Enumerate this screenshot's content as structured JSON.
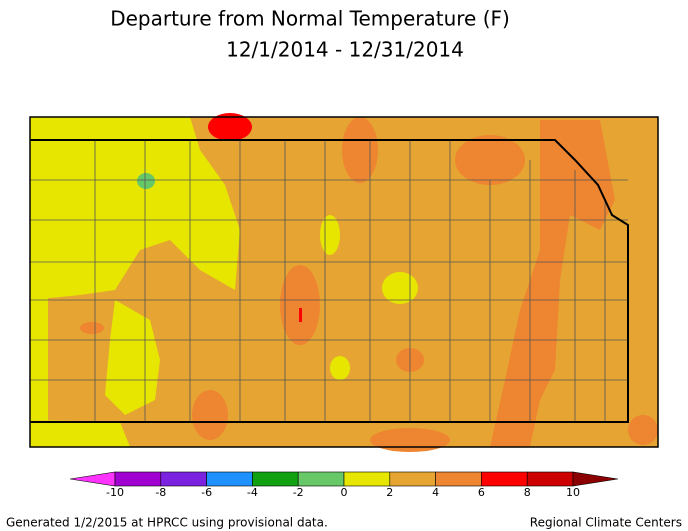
{
  "title": [
    "Departure from Normal Temperature (F)",
    "12/1/2014 - 12/31/2014"
  ],
  "legend": {
    "ticks": [
      -10,
      -8,
      -6,
      -4,
      -2,
      0,
      2,
      4,
      6,
      8,
      10
    ],
    "colors": [
      "#ff33ff",
      "#a000d0",
      "#7a22e0",
      "#1e90ff",
      "#10a010",
      "#66c866",
      "#e6e600",
      "#e6a532",
      "#ee8530",
      "#ff0000",
      "#cc0000",
      "#8b0000"
    ]
  },
  "footer": {
    "left": "Generated 1/2/2015 at HPRCC using provisional data.",
    "right": "Regional Climate Centers"
  }
}
